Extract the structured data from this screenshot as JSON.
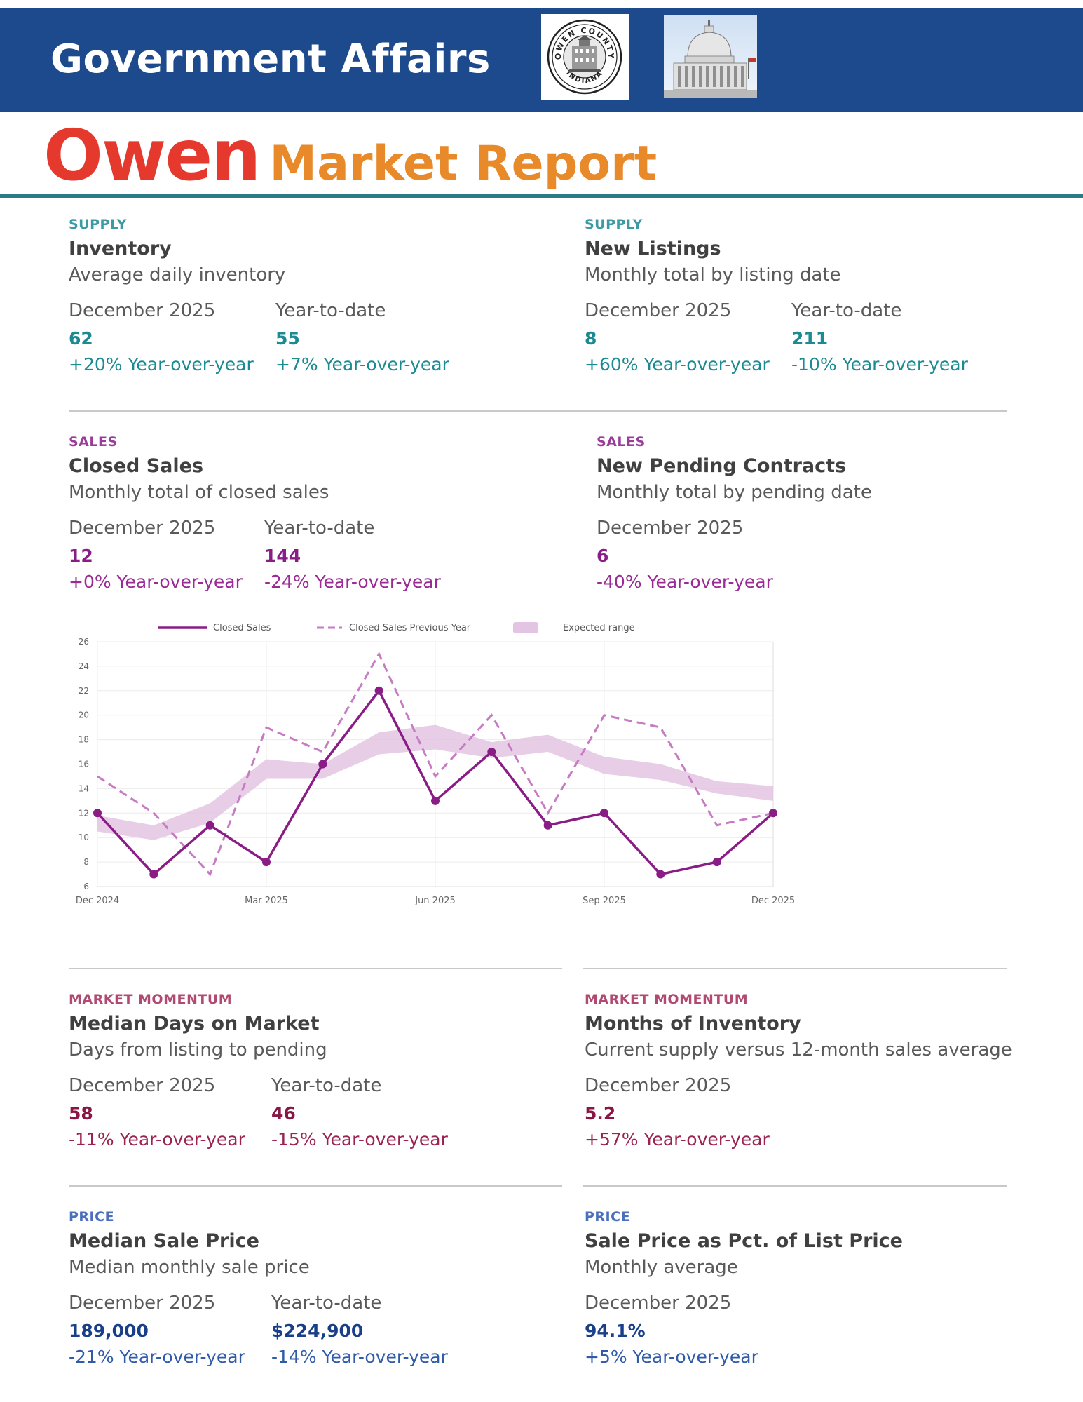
{
  "header": {
    "banner_title": "Government Affairs",
    "seal_logo": "Owen County Indiana seal",
    "seal_text_top": "OWEN COUNTY",
    "seal_text_bottom": "INDIANA",
    "capitol_image": "capitol-dome-icon",
    "report_name": "Owen",
    "report_subtitle": "Market Report",
    "banner_color": "#1d4a8c",
    "rule_color": "#2a7b87"
  },
  "inventory": {
    "category": "SUPPLY",
    "title": "Inventory",
    "desc": "Average daily inventory",
    "period1": {
      "label": "December 2025",
      "value": "62",
      "change": "+20% Year-over-year"
    },
    "period2": {
      "label": "Year-to-date",
      "value": "55",
      "change": "+7% Year-over-year"
    }
  },
  "new_listings": {
    "category": "SUPPLY",
    "title": "New Listings",
    "desc": "Monthly total by listing date",
    "period1": {
      "label": "December 2025",
      "value": "8",
      "change": "+60% Year-over-year"
    },
    "period2": {
      "label": "Year-to-date",
      "value": "211",
      "change": "-10% Year-over-year"
    }
  },
  "closed_sales": {
    "category": "SALES",
    "title": "Closed Sales",
    "desc": "Monthly total of closed sales",
    "period1": {
      "label": "December 2025",
      "value": "12",
      "change": "+0% Year-over-year"
    },
    "period2": {
      "label": "Year-to-date",
      "value": "144",
      "change": "-24% Year-over-year"
    }
  },
  "pending": {
    "category": "SALES",
    "title": "New Pending Contracts",
    "desc": "Monthly total by pending date",
    "period1": {
      "label": "December 2025",
      "value": "6",
      "change": "-40% Year-over-year"
    }
  },
  "dom": {
    "category": "MARKET MOMENTUM",
    "title": "Median Days on Market",
    "desc": "Days from listing to pending",
    "period1": {
      "label": "December 2025",
      "value": "58",
      "change": "-11% Year-over-year"
    },
    "period2": {
      "label": "Year-to-date",
      "value": "46",
      "change": "-15% Year-over-year"
    }
  },
  "moi": {
    "category": "MARKET MOMENTUM",
    "title": "Months of Inventory",
    "desc": "Current supply versus 12-month sales average",
    "period1": {
      "label": "December 2025",
      "value": "5.2",
      "change": "+57% Year-over-year"
    }
  },
  "msp": {
    "category": "PRICE",
    "title": "Median Sale Price",
    "desc": "Median monthly sale price",
    "period1": {
      "label": "December 2025",
      "value": "189,000",
      "change": "-21% Year-over-year"
    },
    "period2": {
      "label": "Year-to-date",
      "value": "$224,900",
      "change": "-14% Year-over-year"
    }
  },
  "sp_list": {
    "category": "PRICE",
    "title": "Sale Price as Pct. of List Price",
    "desc": "Monthly average",
    "period1": {
      "label": "December 2025",
      "value": "94.1%",
      "change": "+5% Year-over-year"
    }
  },
  "chart_data": {
    "type": "line",
    "title": "",
    "xlabel": "",
    "ylabel": "",
    "ylim": [
      6,
      26
    ],
    "yticks": [
      "6",
      "8",
      "10",
      "12",
      "14",
      "16",
      "18",
      "20",
      "22",
      "24",
      "26"
    ],
    "xticks": [
      "Dec 2024",
      "Mar 2025",
      "Jun 2025",
      "Sep 2025",
      "Dec 2025"
    ],
    "legend_position": "top",
    "series": [
      {
        "name": "Closed Sales",
        "style": "solid",
        "values": [
          12,
          7,
          11,
          8,
          16,
          22,
          13,
          17,
          11,
          12,
          7,
          8,
          12
        ]
      },
      {
        "name": "Closed Sales Previous Year",
        "style": "dashed",
        "values": [
          15,
          12,
          7,
          19,
          17,
          25,
          15,
          20,
          12,
          20,
          19,
          11,
          12
        ]
      }
    ],
    "band": {
      "name": "Expected range",
      "low": [
        10.5,
        9.8,
        11.2,
        14.8,
        14.8,
        16.8,
        17.2,
        16.5,
        17.0,
        15.2,
        14.7,
        13.6,
        13.0
      ],
      "high": [
        11.8,
        11.0,
        12.8,
        16.4,
        16.0,
        18.6,
        19.2,
        17.8,
        18.4,
        16.6,
        16.0,
        14.6,
        14.2
      ]
    },
    "colors": {
      "line": "#8a1c86",
      "dashed": "#c77bc3",
      "band": "#e4c4e3"
    }
  }
}
